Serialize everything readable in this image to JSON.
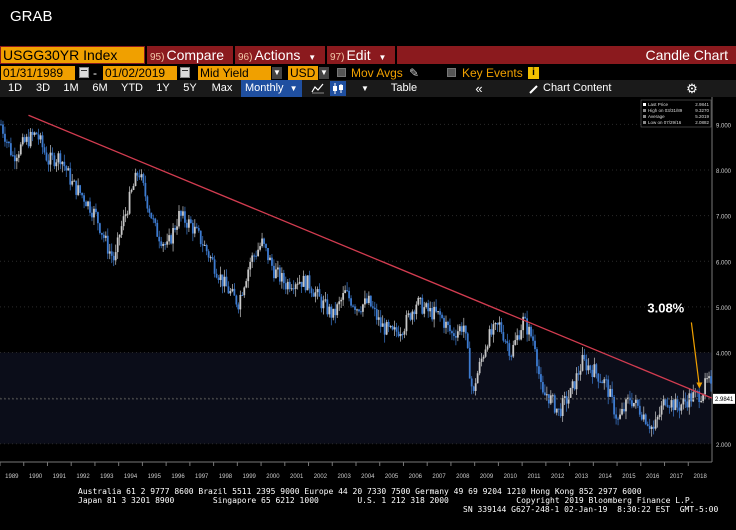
{
  "window_title": "GRAB",
  "command_bar": {
    "ticker": "USGG30YR Index",
    "compare_num": "95)",
    "compare_label": "Compare",
    "actions_num": "96)",
    "actions_label": "Actions",
    "edit_num": "97)",
    "edit_label": "Edit",
    "chart_type": "Candle Chart"
  },
  "params": {
    "start_date": "01/31/1989",
    "date_separator": "-",
    "end_date": "01/02/2019",
    "field": "Mid Yield",
    "currency": "USD",
    "mov_avgs": "Mov Avgs",
    "key_events": "Key Events"
  },
  "periods": {
    "items": [
      "1D",
      "3D",
      "1M",
      "6M",
      "YTD",
      "1Y",
      "5Y",
      "Max"
    ],
    "frequency": "Monthly",
    "table": "Table",
    "chart_content": "Chart Content"
  },
  "legend": {
    "last_price_label": "Last Price",
    "last_price_value": "2.9841",
    "high_label": "High on 03/31/89",
    "high_value": "9.3270",
    "average_label": "Average",
    "average_value": "5.2019",
    "low_label": "Low on 07/29/16",
    "low_value": "2.0882"
  },
  "annotation": {
    "label": "3.08%",
    "value": 3.08,
    "color": "#ffffff",
    "arrow_color": "#f0a000"
  },
  "last_price_tag": "2.9841",
  "footer": {
    "line1": "Australia 61 2 9777 8600 Brazil 5511 2395 9000 Europe 44 20 7330 7500 Germany 49 69 9204 1210 Hong Kong 852 2977 6000",
    "line2": "Japan 81 3 3201 8900        Singapore 65 6212 1000        U.S. 1 212 318 2000              Copyright 2019 Bloomberg Finance L.P.",
    "line3": "SN 339144 G627-248-1 02-Jan-19  8:30:22 EST  GMT-5:00"
  },
  "colors": {
    "command_bar": "#8b1a1e",
    "field_bg": "#f0a000",
    "candle_up": "#c8c8c8",
    "candle_down": "#3d7bd0",
    "trendline": "#d23c50",
    "monthly_button": "#1f4fa0"
  },
  "chart_data": {
    "type": "candlestick",
    "title": "",
    "xlabel": "",
    "ylabel": "",
    "x_ticks": [
      "1989",
      "1990",
      "1991",
      "1992",
      "1993",
      "1994",
      "1995",
      "1996",
      "1997",
      "1998",
      "1999",
      "2000",
      "2001",
      "2002",
      "2003",
      "2004",
      "2005",
      "2006",
      "2007",
      "2008",
      "2009",
      "2010",
      "2011",
      "2012",
      "2013",
      "2014",
      "2015",
      "2016",
      "2017",
      "2018"
    ],
    "y_ticks": [
      "2.000",
      "3.000",
      "4.000",
      "5.000",
      "6.000",
      "7.000",
      "8.000",
      "9.000"
    ],
    "ylim": [
      1.6,
      9.6
    ],
    "xlim": [
      1989.0,
      2019.0
    ],
    "grid": true,
    "shaded_band": [
      2.0,
      4.0
    ],
    "series": [
      {
        "name": "USGG30YR Index",
        "x": [
          1989.0,
          1989.5,
          1990.0,
          1990.5,
          1991.0,
          1991.5,
          1992.0,
          1992.5,
          1993.0,
          1993.5,
          1993.8,
          1994.0,
          1994.5,
          1994.8,
          1995.0,
          1995.5,
          1996.0,
          1996.5,
          1997.0,
          1997.5,
          1998.0,
          1998.4,
          1998.8,
          1999.0,
          1999.5,
          2000.0,
          2000.5,
          2001.0,
          2001.5,
          2002.0,
          2002.5,
          2003.0,
          2003.5,
          2004.0,
          2004.5,
          2005.0,
          2005.5,
          2006.0,
          2006.5,
          2007.0,
          2007.5,
          2008.0,
          2008.5,
          2008.9,
          2009.0,
          2009.5,
          2010.0,
          2010.5,
          2010.8,
          2011.0,
          2011.5,
          2011.8,
          2012.0,
          2012.5,
          2013.0,
          2013.5,
          2014.0,
          2014.5,
          2015.0,
          2015.5,
          2016.0,
          2016.5,
          2017.0,
          2017.5,
          2018.0,
          2018.5,
          2018.8,
          2019.0
        ],
        "y": [
          9.0,
          8.3,
          8.6,
          8.8,
          8.2,
          8.3,
          7.7,
          7.4,
          7.0,
          6.3,
          6.0,
          6.6,
          7.5,
          8.0,
          7.6,
          6.7,
          6.3,
          7.0,
          6.8,
          6.4,
          5.9,
          5.5,
          5.2,
          5.1,
          6.0,
          6.4,
          5.8,
          5.5,
          5.6,
          5.5,
          5.1,
          4.8,
          5.3,
          5.0,
          5.1,
          4.6,
          4.4,
          4.6,
          5.1,
          4.9,
          4.8,
          4.4,
          4.6,
          3.0,
          3.4,
          4.3,
          4.6,
          4.0,
          4.4,
          4.7,
          4.2,
          3.0,
          3.1,
          2.7,
          3.1,
          3.8,
          3.6,
          3.3,
          2.5,
          3.0,
          2.7,
          2.3,
          3.0,
          2.8,
          3.0,
          3.1,
          3.4,
          3.0
        ]
      }
    ],
    "trendline": {
      "x": [
        1990.2,
        2019.0
      ],
      "y": [
        9.2,
        3.0
      ]
    },
    "annotation": {
      "x": 2018.3,
      "y": 3.08,
      "label": "3.08%"
    }
  }
}
